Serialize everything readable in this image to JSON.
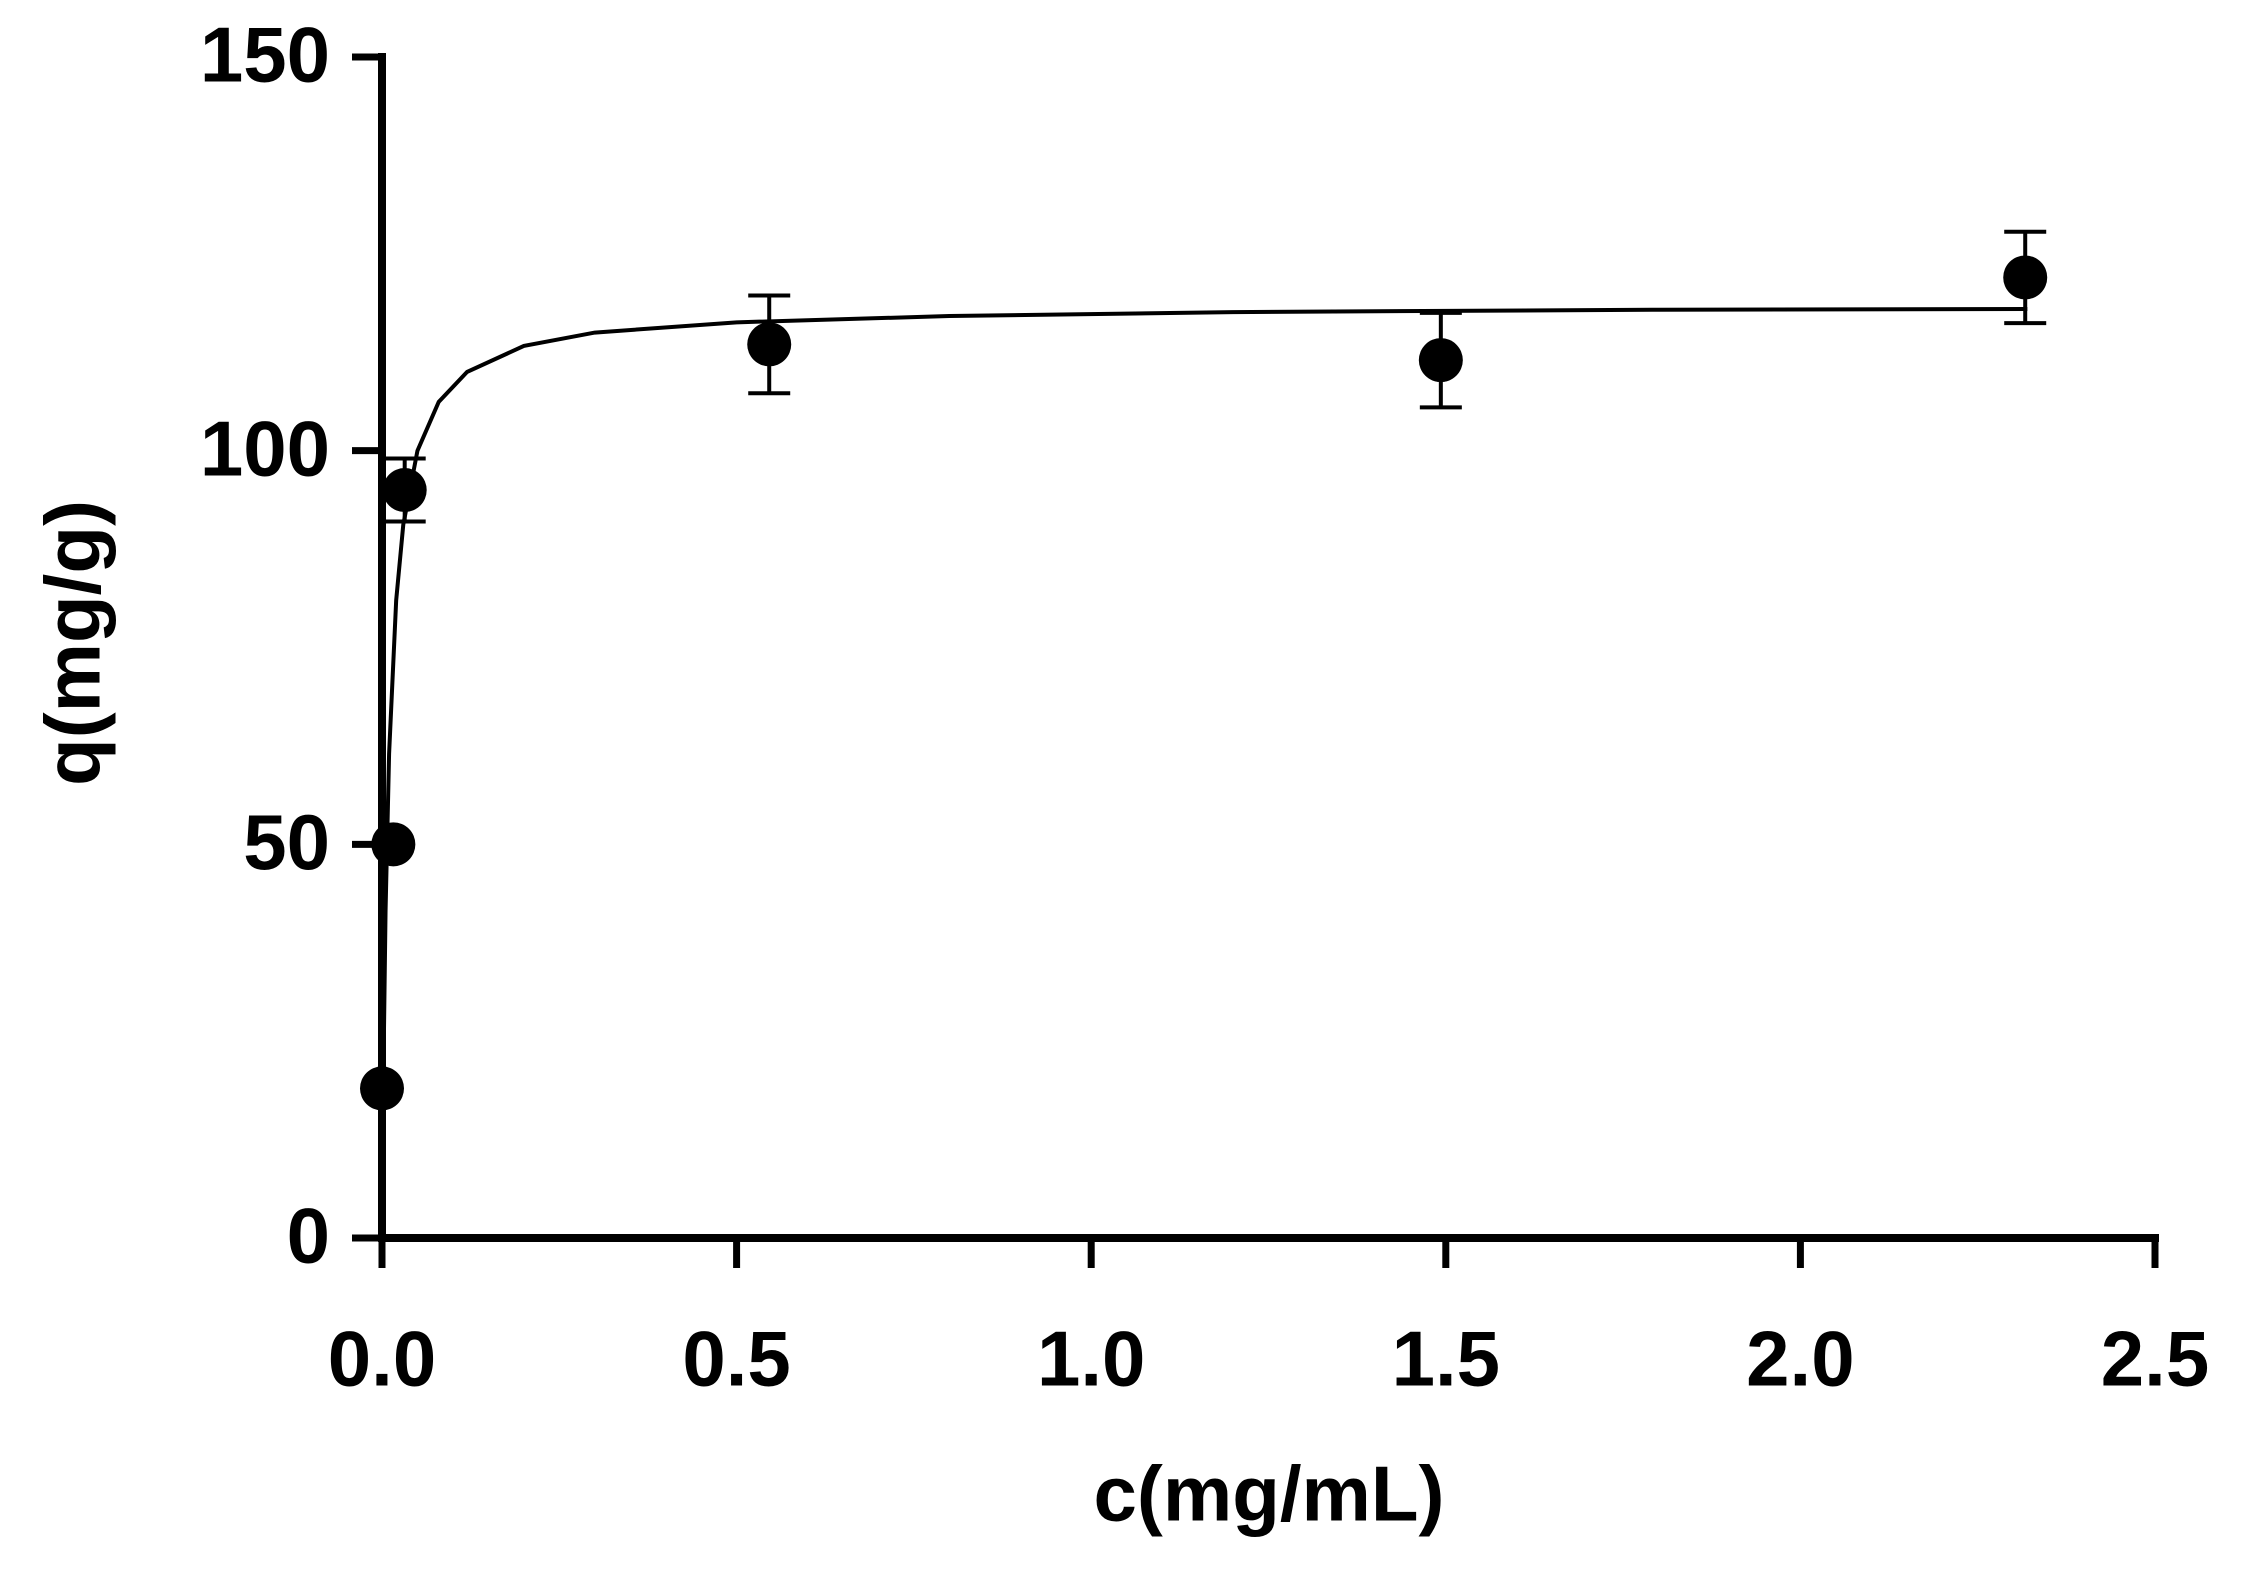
{
  "chart_data": {
    "type": "scatter",
    "x_label": "c(mg/mL)",
    "y_label": "q(mg/g)",
    "xlim": [
      0,
      2.5
    ],
    "ylim": [
      0,
      150
    ],
    "xticks": [
      {
        "value": 0,
        "label": "0.0"
      },
      0.5,
      {
        "value": 1,
        "label": "1.0"
      },
      1.5,
      {
        "value": 2,
        "label": "2.0"
      },
      2.5
    ],
    "yticks": [
      0,
      50,
      100,
      150
    ],
    "color": "#000000",
    "series": [
      {
        "color": "#000000",
        "x": [
          0.0,
          0.016,
          0.032,
          0.546,
          1.493,
          2.317
        ],
        "values": [
          19,
          50,
          95,
          113.5,
          111.5,
          122
        ],
        "errors": [
          null,
          null,
          4,
          6.2,
          6,
          5.8
        ]
      }
    ],
    "fit": {
      "x": [
        0,
        0.002,
        0.005,
        0.01,
        0.02,
        0.03,
        0.05,
        0.08,
        0.12,
        0.2,
        0.3,
        0.5,
        0.8,
        1.2,
        1.8,
        2.32
      ],
      "values": [
        0,
        21.0,
        41.5,
        61.5,
        81.0,
        90.6,
        100.0,
        106.2,
        110.0,
        113.3,
        115.0,
        116.3,
        117.1,
        117.6,
        117.9,
        118.0
      ]
    }
  }
}
